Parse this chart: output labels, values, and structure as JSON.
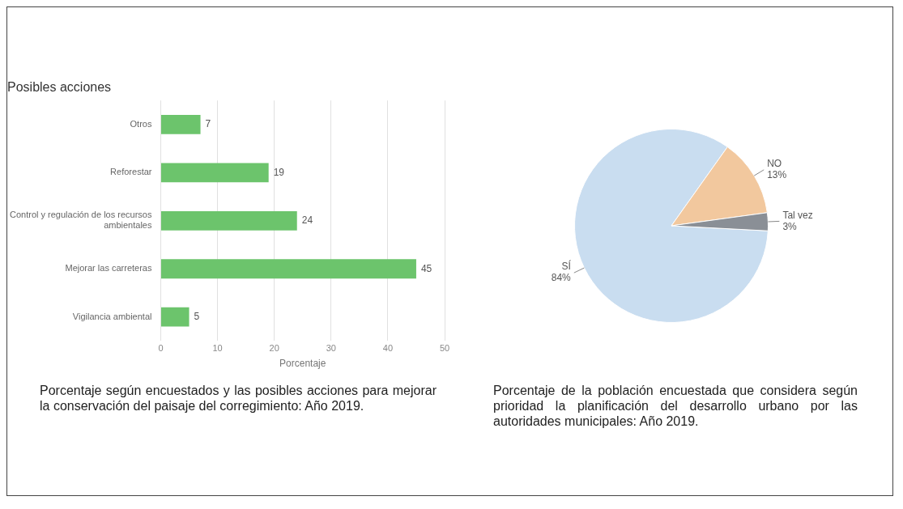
{
  "chart_data": [
    {
      "type": "bar",
      "title": "Posibles acciones",
      "xlabel": "Porcentaje",
      "orientation": "horizontal",
      "categories": [
        "Otros",
        "Reforestar",
        "Control y regulación de los recursos ambientales",
        "Mejorar las carreteras",
        "Vigilancia ambiental"
      ],
      "values": [
        7,
        19,
        24,
        45,
        5
      ],
      "color": "#6cc46c",
      "xlim": [
        0,
        50
      ],
      "xticks": [
        0,
        10,
        20,
        30,
        40,
        50
      ],
      "grid": "x",
      "data_labels": true,
      "annotations": [
        "Porcentaje según encuestados y las posibles acciones para mejorar la conservación del paisaje del corregimiento: Año 2019."
      ]
    },
    {
      "type": "pie",
      "categories": [
        "SÍ",
        "NO",
        "Tal vez"
      ],
      "values": [
        84,
        13,
        3
      ],
      "colors": [
        "#c9ddf0",
        "#f2c89e",
        "#8a8f96"
      ],
      "value_labels": [
        "84%",
        "13%",
        "3%"
      ],
      "annotations": [
        "Porcentaje de la población encuestada que considera según prioridad la planificación del desarrollo urbano por las autoridades municipales: Año 2019."
      ]
    }
  ]
}
